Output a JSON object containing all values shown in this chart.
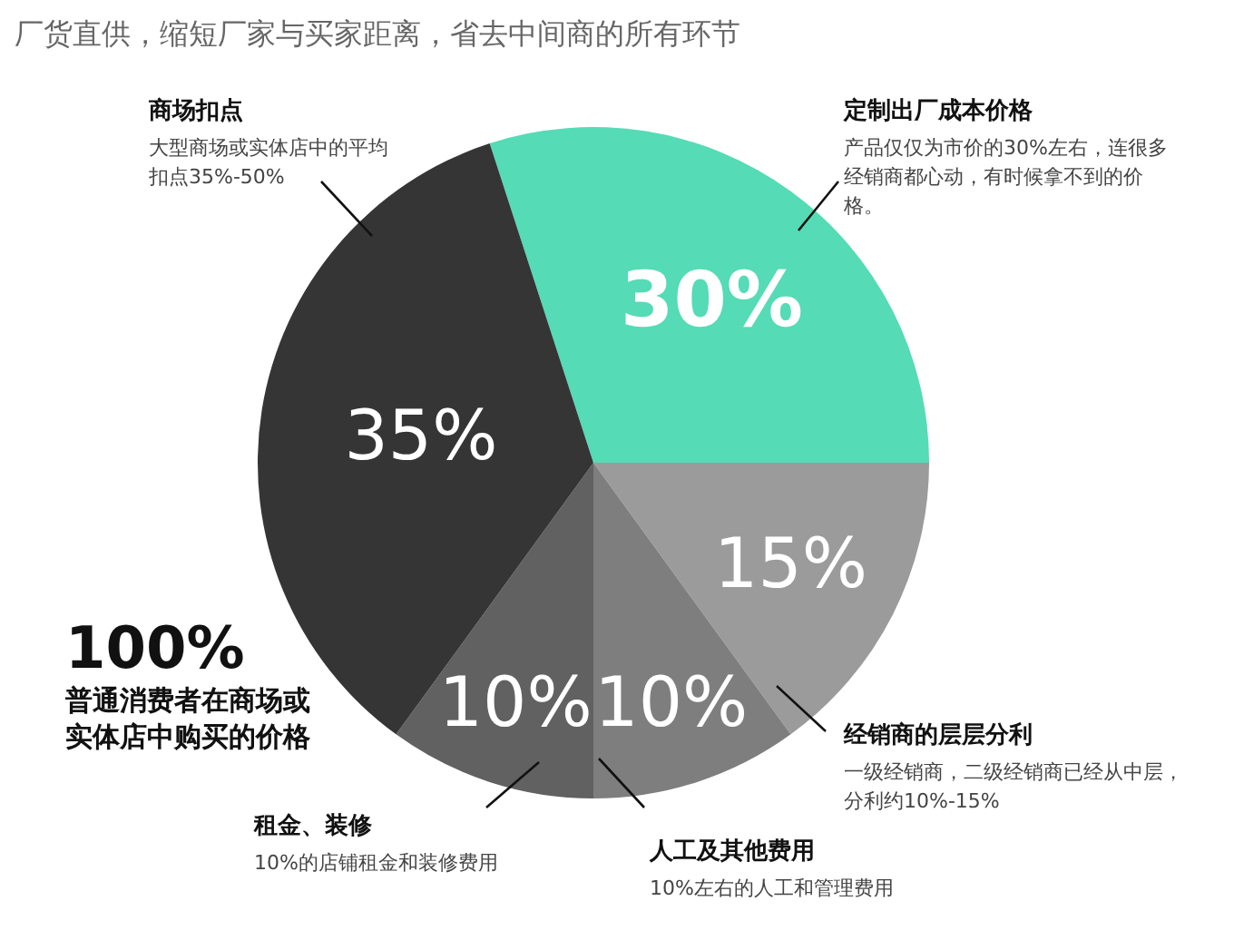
{
  "chart_data": {
    "type": "pie",
    "title": "厂货直供，缩短厂家与买家距离，省去中间商的所有环节",
    "categories": [
      "定制出厂成本价格",
      "经销商的层层分利",
      "人工及其他费用",
      "租金、装修",
      "商场扣点"
    ],
    "values": [
      30,
      15,
      10,
      10,
      35
    ],
    "value_labels": [
      "30%",
      "15%",
      "10%",
      "10%",
      "35%"
    ],
    "colors": [
      "#55dbb5",
      "#9b9b9b",
      "#7e7e7e",
      "#616161",
      "#353535"
    ],
    "annotations": [
      "产品仅仅为市价的30%左右，连很多经销商都心动，有时候拿不到的价格。",
      "一级经销商，二级经销商已经从中层，分利约10%-15%",
      "10%左右的人工和管理费用",
      "10%的店铺租金和装修费用",
      "大型商场或实体店中的平均扣点35%-50%",
      "100%",
      "普通消费者在商场或实体店中购买的价格"
    ]
  }
}
